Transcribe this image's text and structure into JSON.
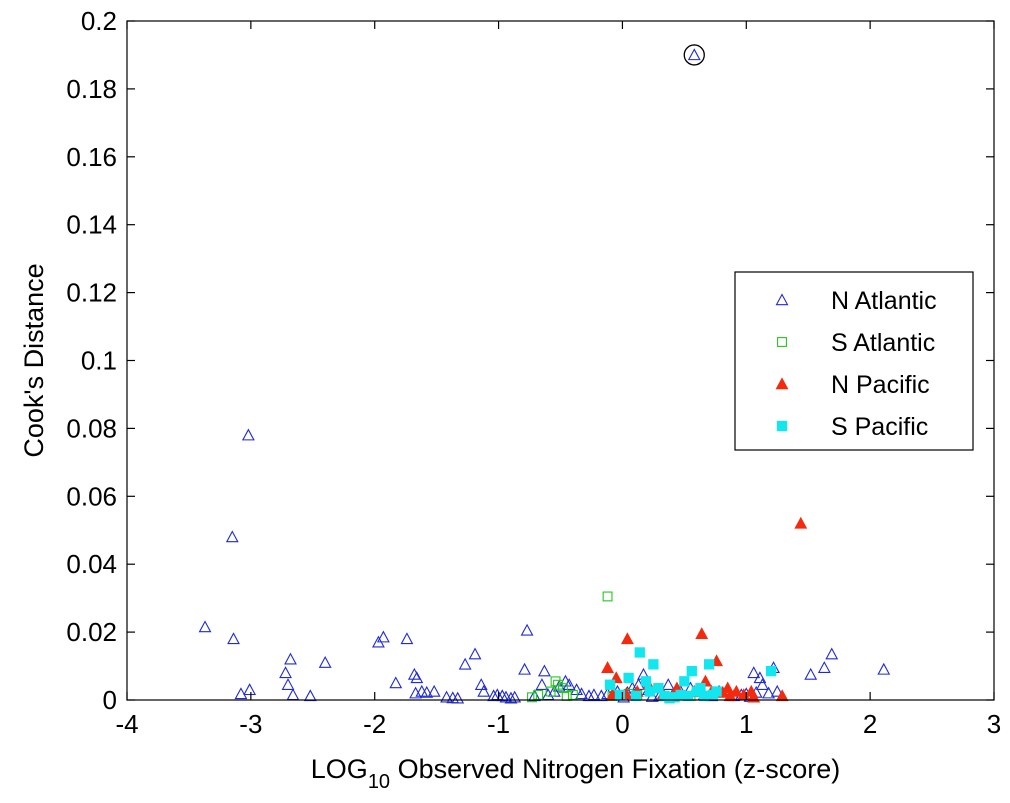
{
  "chart_data": {
    "type": "scatter",
    "title": "",
    "xlabel": "LOG",
    "xlabel_subscript": "10",
    "xlabel_rest": " Observed Nitrogen Fixation (z-score)",
    "ylabel": "Cook's Distance",
    "xlim": [
      -4,
      3
    ],
    "ylim": [
      0,
      0.2
    ],
    "x_ticks": [
      -4,
      -3,
      -2,
      -1,
      0,
      1,
      2,
      3
    ],
    "x_tick_labels": [
      "-4",
      "-3",
      "-2",
      "-1",
      "0",
      "1",
      "2",
      "3"
    ],
    "y_ticks": [
      0,
      0.02,
      0.04,
      0.06,
      0.08,
      0.1,
      0.12,
      0.14,
      0.16,
      0.18,
      0.2
    ],
    "y_tick_labels": [
      "0",
      "0.02",
      "0.04",
      "0.06",
      "0.08",
      "0.1",
      "0.12",
      "0.14",
      "0.16",
      "0.18",
      "0.2"
    ],
    "grid": false,
    "legend_position": "right-middle",
    "highlight": {
      "x": 0.58,
      "y": 0.19,
      "marker": "circle",
      "color": "#000000"
    },
    "series": [
      {
        "name": "N Atlantic",
        "marker": "triangle-open",
        "color": "#1f2ad8",
        "points": [
          [
            -3.37,
            0.0215
          ],
          [
            -3.15,
            0.048
          ],
          [
            -3.14,
            0.018
          ],
          [
            -3.02,
            0.078
          ],
          [
            -3.08,
            0.0018
          ],
          [
            -3.01,
            0.003
          ],
          [
            -2.72,
            0.008
          ],
          [
            -2.68,
            0.012
          ],
          [
            -2.7,
            0.0045
          ],
          [
            -2.66,
            0.0015
          ],
          [
            -2.52,
            0.0012
          ],
          [
            -2.4,
            0.011
          ],
          [
            -1.97,
            0.017
          ],
          [
            -1.93,
            0.0185
          ],
          [
            -1.83,
            0.005
          ],
          [
            -1.74,
            0.018
          ],
          [
            -1.68,
            0.0075
          ],
          [
            -1.66,
            0.0065
          ],
          [
            -1.67,
            0.002
          ],
          [
            -1.62,
            0.0025
          ],
          [
            -1.58,
            0.0022
          ],
          [
            -1.52,
            0.0025
          ],
          [
            -1.42,
            0.0008
          ],
          [
            -1.37,
            0.0006
          ],
          [
            -1.33,
            0.0005
          ],
          [
            -1.27,
            0.0105
          ],
          [
            -1.19,
            0.0135
          ],
          [
            -1.14,
            0.0045
          ],
          [
            -1.12,
            0.0025
          ],
          [
            -1.04,
            0.0012
          ],
          [
            -1.01,
            0.0015
          ],
          [
            -0.97,
            0.0012
          ],
          [
            -0.94,
            0.0008
          ],
          [
            -0.9,
            0.0005
          ],
          [
            -0.87,
            0.0008
          ],
          [
            -0.79,
            0.009
          ],
          [
            -0.77,
            0.0205
          ],
          [
            -0.71,
            0.0012
          ],
          [
            -0.65,
            0.0045
          ],
          [
            -0.63,
            0.0085
          ],
          [
            -0.6,
            0.0015
          ],
          [
            -0.55,
            0.0025
          ],
          [
            -0.51,
            0.004
          ],
          [
            -0.46,
            0.0055
          ],
          [
            -0.43,
            0.0045
          ],
          [
            -0.37,
            0.003
          ],
          [
            -0.33,
            0.0018
          ],
          [
            -0.27,
            0.0012
          ],
          [
            -0.23,
            0.0015
          ],
          [
            -0.17,
            0.0012
          ],
          [
            -0.12,
            0.0018
          ],
          [
            -0.08,
            0.0015
          ],
          [
            -0.04,
            0.0025
          ],
          [
            0.01,
            0.0008
          ],
          [
            0.04,
            0.0022
          ],
          [
            0.08,
            0.0035
          ],
          [
            0.13,
            0.0045
          ],
          [
            0.17,
            0.0075
          ],
          [
            0.21,
            0.003
          ],
          [
            0.24,
            0.001
          ],
          [
            0.3,
            0.0012
          ],
          [
            0.37,
            0.0045
          ],
          [
            0.41,
            0.0018
          ],
          [
            0.47,
            0.0025
          ],
          [
            0.55,
            0.0035
          ],
          [
            0.58,
            0.19
          ],
          [
            0.61,
            0.0025
          ],
          [
            0.66,
            0.0015
          ],
          [
            0.72,
            0.0012
          ],
          [
            0.78,
            0.0025
          ],
          [
            0.85,
            0.003
          ],
          [
            0.9,
            0.0012
          ],
          [
            0.96,
            0.0015
          ],
          [
            1.0,
            0.0018
          ],
          [
            1.03,
            0.001
          ],
          [
            1.06,
            0.008
          ],
          [
            1.08,
            0.0022
          ],
          [
            1.11,
            0.0065
          ],
          [
            1.13,
            0.0045
          ],
          [
            1.18,
            0.002
          ],
          [
            1.22,
            0.0095
          ],
          [
            1.25,
            0.0025
          ],
          [
            1.52,
            0.0075
          ],
          [
            1.63,
            0.0095
          ],
          [
            1.69,
            0.0135
          ],
          [
            2.11,
            0.009
          ]
        ]
      },
      {
        "name": "S Atlantic",
        "marker": "square-open",
        "color": "#22c81e",
        "points": [
          [
            -0.73,
            0.0008
          ],
          [
            -0.68,
            0.0015
          ],
          [
            -0.58,
            0.0025
          ],
          [
            -0.54,
            0.0055
          ],
          [
            -0.52,
            0.0045
          ],
          [
            -0.48,
            0.0035
          ],
          [
            -0.45,
            0.0012
          ],
          [
            -0.4,
            0.0015
          ],
          [
            -0.12,
            0.0305
          ],
          [
            -0.08,
            0.0012
          ],
          [
            0.05,
            0.0018
          ],
          [
            0.12,
            0.0015
          ],
          [
            0.55,
            0.0012
          ]
        ]
      },
      {
        "name": "N Pacific",
        "marker": "triangle-filled",
        "color": "#f42a0e",
        "points": [
          [
            -0.12,
            0.0095
          ],
          [
            -0.08,
            0.0015
          ],
          [
            -0.05,
            0.0065
          ],
          [
            0.03,
            0.0018
          ],
          [
            0.04,
            0.018
          ],
          [
            0.12,
            0.0025
          ],
          [
            0.21,
            0.0045
          ],
          [
            0.33,
            0.0018
          ],
          [
            0.44,
            0.0035
          ],
          [
            0.58,
            0.0025
          ],
          [
            0.64,
            0.0195
          ],
          [
            0.67,
            0.0055
          ],
          [
            0.72,
            0.0025
          ],
          [
            0.76,
            0.0115
          ],
          [
            0.81,
            0.0022
          ],
          [
            0.85,
            0.0035
          ],
          [
            0.87,
            0.0012
          ],
          [
            0.92,
            0.0025
          ],
          [
            0.98,
            0.0015
          ],
          [
            1.04,
            0.0025
          ],
          [
            1.06,
            0.0008
          ],
          [
            1.29,
            0.0012
          ],
          [
            1.44,
            0.052
          ]
        ]
      },
      {
        "name": "S Pacific",
        "marker": "square-filled",
        "color": "#12e6ee",
        "points": [
          [
            -0.1,
            0.0045
          ],
          [
            -0.02,
            0.0015
          ],
          [
            0.05,
            0.0065
          ],
          [
            0.11,
            0.0012
          ],
          [
            0.14,
            0.014
          ],
          [
            0.19,
            0.0055
          ],
          [
            0.22,
            0.0025
          ],
          [
            0.25,
            0.0105
          ],
          [
            0.29,
            0.0035
          ],
          [
            0.34,
            0.0012
          ],
          [
            0.38,
            0.0005
          ],
          [
            0.42,
            0.0008
          ],
          [
            0.47,
            0.0015
          ],
          [
            0.5,
            0.0055
          ],
          [
            0.53,
            0.0012
          ],
          [
            0.56,
            0.0085
          ],
          [
            0.6,
            0.0025
          ],
          [
            0.63,
            0.0035
          ],
          [
            0.66,
            0.0012
          ],
          [
            0.7,
            0.0105
          ],
          [
            0.73,
            0.0015
          ],
          [
            0.76,
            0.0025
          ],
          [
            1.2,
            0.0085
          ]
        ]
      }
    ]
  }
}
